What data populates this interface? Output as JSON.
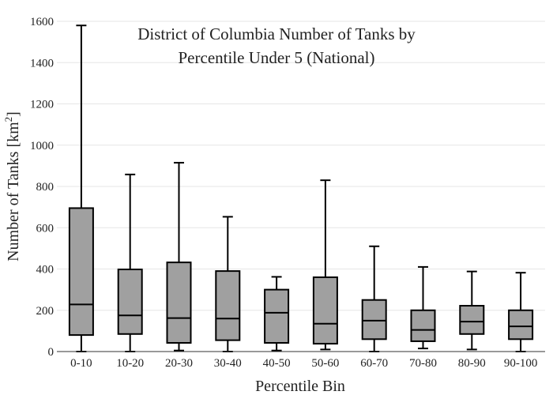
{
  "chart_data": {
    "type": "box",
    "title_lines": [
      "District of Columbia Number of Tanks by",
      "Percentile Under 5 (National)"
    ],
    "xlabel": "Percentile Bin",
    "ylabel_main": "Number of Tanks  [km",
    "ylabel_sup": "2",
    "ylabel_end": "]",
    "ylim": [
      0,
      1600
    ],
    "yticks": [
      0,
      200,
      400,
      600,
      800,
      1000,
      1200,
      1400,
      1600
    ],
    "grid": true,
    "categories": [
      "0-10",
      "10-20",
      "20-30",
      "30-40",
      "40-50",
      "50-60",
      "60-70",
      "70-80",
      "80-90",
      "90-100"
    ],
    "boxes": [
      {
        "min": 0,
        "q1": 80,
        "median": 228,
        "q3": 695,
        "max": 1580
      },
      {
        "min": 0,
        "q1": 85,
        "median": 175,
        "q3": 398,
        "max": 858
      },
      {
        "min": 5,
        "q1": 42,
        "median": 162,
        "q3": 432,
        "max": 915
      },
      {
        "min": 0,
        "q1": 55,
        "median": 160,
        "q3": 390,
        "max": 653
      },
      {
        "min": 5,
        "q1": 42,
        "median": 188,
        "q3": 300,
        "max": 362
      },
      {
        "min": 10,
        "q1": 38,
        "median": 135,
        "q3": 360,
        "max": 830
      },
      {
        "min": 0,
        "q1": 60,
        "median": 150,
        "q3": 250,
        "max": 510
      },
      {
        "min": 15,
        "q1": 50,
        "median": 105,
        "q3": 200,
        "max": 410
      },
      {
        "min": 10,
        "q1": 85,
        "median": 145,
        "q3": 222,
        "max": 388
      },
      {
        "min": 0,
        "q1": 60,
        "median": 122,
        "q3": 200,
        "max": 382
      }
    ]
  }
}
